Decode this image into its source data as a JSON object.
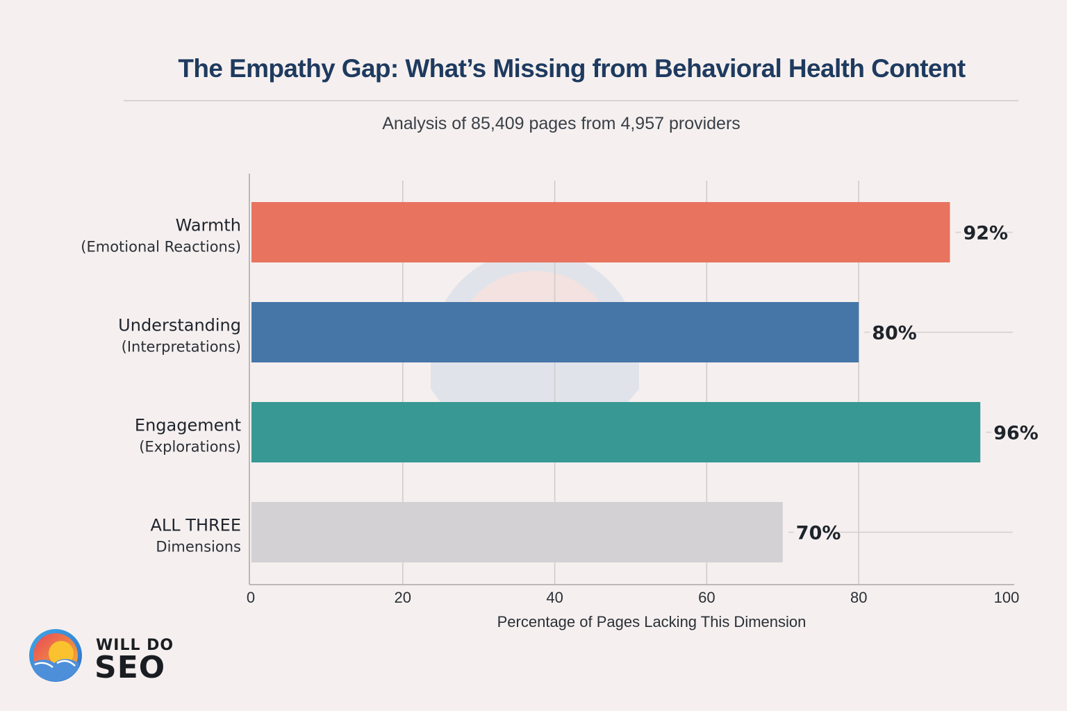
{
  "header": {
    "title": "The Empathy Gap: What’s Missing from Behavioral Health Content",
    "subtitle": "Analysis of 85,409 pages from 4,957 providers"
  },
  "chart_data": {
    "type": "bar",
    "orientation": "horizontal",
    "title": "The Empathy Gap: What’s Missing from Behavioral Health Content",
    "subtitle": "Analysis of 85,409 pages from 4,957 providers",
    "categories": [
      {
        "label": "Warmth",
        "sublabel": "(Emotional Reactions)"
      },
      {
        "label": "Understanding",
        "sublabel": "(Interpretations)"
      },
      {
        "label": "Engagement",
        "sublabel": "(Explorations)"
      },
      {
        "label": "ALL THREE",
        "sublabel": "Dimensions"
      }
    ],
    "values": [
      92,
      80,
      96,
      70
    ],
    "value_labels": [
      "92%",
      "80%",
      "96%",
      "70%"
    ],
    "colors": [
      "#E8735F",
      "#4676A8",
      "#389893",
      "#D3D1D4"
    ],
    "xlabel": "Percentage of Pages Lacking This Dimension",
    "ylabel": "",
    "xlim": [
      0,
      100
    ],
    "xticks": [
      0,
      20,
      40,
      60,
      80,
      100
    ],
    "grid": true,
    "legend": "none"
  },
  "branding": {
    "logo_line1": "WILL DO",
    "logo_line2": "SEO"
  }
}
